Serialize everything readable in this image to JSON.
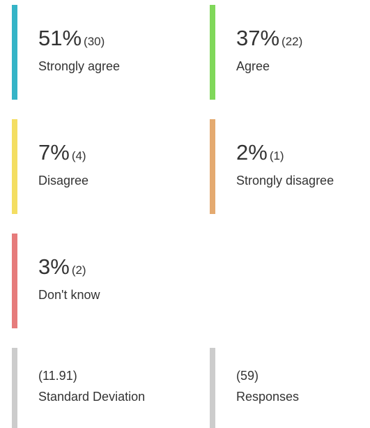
{
  "items": [
    {
      "percent": "51%",
      "count": "(30)",
      "label": "Strongly agree",
      "color": "#35b4c7"
    },
    {
      "percent": "37%",
      "count": "(22)",
      "label": "Agree",
      "color": "#80d85a"
    },
    {
      "percent": "7%",
      "count": "(4)",
      "label": "Disagree",
      "color": "#f4de62"
    },
    {
      "percent": "2%",
      "count": "(1)",
      "label": "Strongly disagree",
      "color": "#e4aa70"
    },
    {
      "percent": "3%",
      "count": "(2)",
      "label": "Don't know",
      "color": "#e67b7b"
    }
  ],
  "stats": [
    {
      "value": "(11.91)",
      "label": "Standard Deviation",
      "color": "#cccccc"
    },
    {
      "value": "(59)",
      "label": "Responses",
      "color": "#cccccc"
    }
  ]
}
